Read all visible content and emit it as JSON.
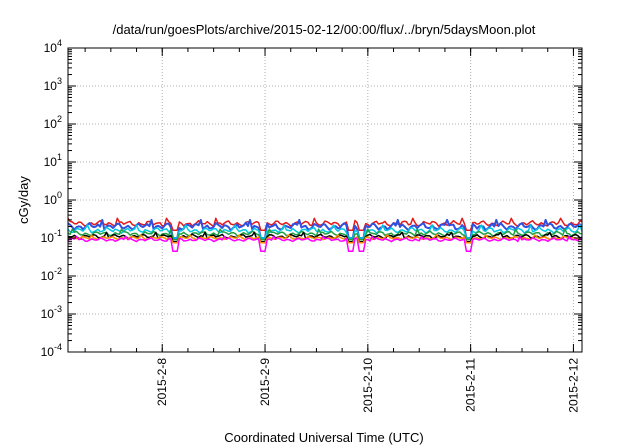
{
  "chart_data": {
    "type": "line",
    "title": "/data/run/goesPlots/archive/2015-02-12/00:00/flux/../bryn/5daysMoon.plot",
    "xlabel": "Coordinated Universal Time (UTC)",
    "ylabel": "cGy/day",
    "yscale": "log",
    "ylim": [
      0.0001,
      10000
    ],
    "xlim": [
      "2015-02-07 02:00",
      "2015-02-12 02:00"
    ],
    "grid": true,
    "y_ticks": [
      {
        "exp": "-4",
        "value": 0.0001
      },
      {
        "exp": "-3",
        "value": 0.001
      },
      {
        "exp": "-2",
        "value": 0.01
      },
      {
        "exp": "-1",
        "value": 0.1
      },
      {
        "exp": "0",
        "value": 1
      },
      {
        "exp": "1",
        "value": 10
      },
      {
        "exp": "2",
        "value": 100
      },
      {
        "exp": "3",
        "value": 1000
      },
      {
        "exp": "4",
        "value": 10000
      }
    ],
    "y_tick_base": "10",
    "x_ticks": [
      "2015-2-8",
      "2015-2-9",
      "2015-2-10",
      "2015-2-11",
      "2015-2-12"
    ],
    "series": [
      {
        "color": "#e41a1c",
        "typical": 0.24,
        "low": 0.16,
        "high": 0.33
      },
      {
        "color": "#3050e0",
        "typical": 0.2,
        "low": 0.1,
        "high": 0.3
      },
      {
        "color": "#00c8e0",
        "typical": 0.16,
        "low": 0.1,
        "high": 0.22
      },
      {
        "color": "#20a040",
        "typical": 0.13,
        "low": 0.09,
        "high": 0.17
      },
      {
        "color": "#000000",
        "typical": 0.11,
        "low": 0.08,
        "high": 0.14
      },
      {
        "color": "#ff8c00",
        "typical": 0.1,
        "low": 0.075,
        "high": 0.12
      },
      {
        "color": "#ff00ff",
        "typical": 0.09,
        "low": 0.045,
        "high": 0.11
      }
    ]
  }
}
